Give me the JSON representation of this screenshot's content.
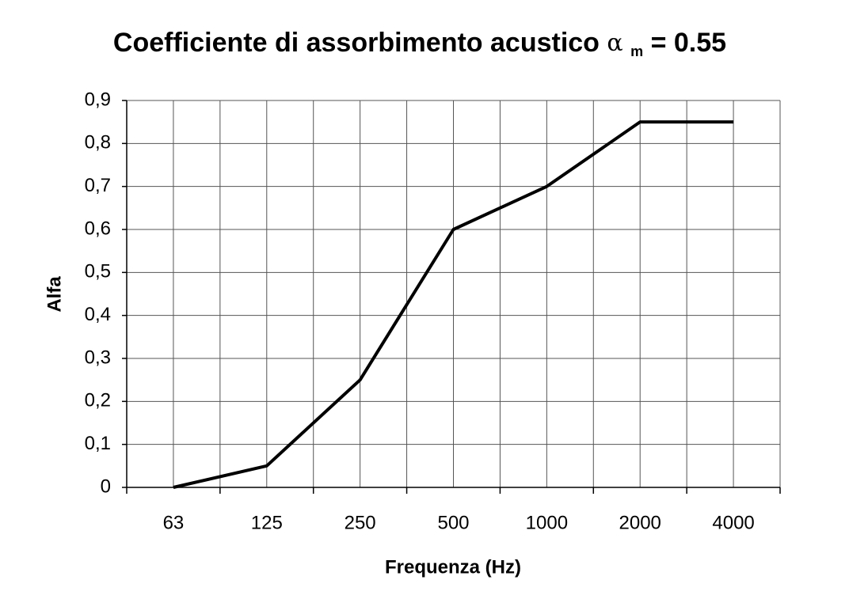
{
  "chart_data": {
    "type": "line",
    "title": "Coefficiente di assorbimento acustico",
    "title_symbol": "α",
    "title_subscript": "m",
    "title_suffix": "= 0.55",
    "x_label": "Frequenza (Hz)",
    "y_label": "Alfa",
    "categories": [
      "63",
      "125",
      "250",
      "500",
      "1000",
      "2000",
      "4000"
    ],
    "values": [
      0,
      0.05,
      0.25,
      0.6,
      0.7,
      0.85,
      0.85
    ],
    "color": "#000000",
    "ylim": [
      0,
      0.9
    ],
    "yticks": [
      0,
      {
        "value": 0.1,
        "label": "0,1"
      },
      {
        "value": 0.2,
        "label": "0,2"
      },
      {
        "value": 0.3,
        "label": "0,3"
      },
      {
        "value": 0.4,
        "label": "0,4"
      },
      {
        "value": 0.5,
        "label": "0,5"
      },
      {
        "value": 0.6,
        "label": "0,6"
      },
      {
        "value": 0.7,
        "label": "0,7"
      },
      {
        "value": 0.8,
        "label": "0,8"
      },
      {
        "value": 0.9,
        "label": "0,9"
      }
    ],
    "grid": true
  }
}
